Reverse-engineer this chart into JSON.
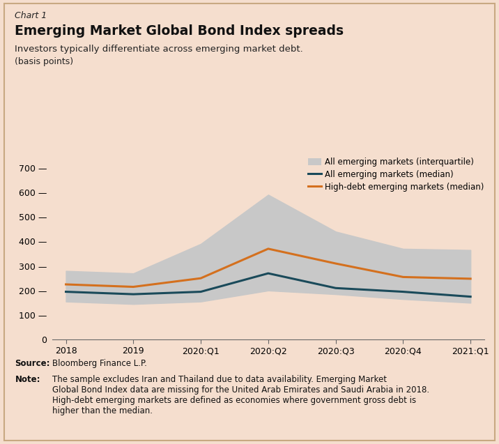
{
  "background_color": "#f5dece",
  "chart_label": "Chart 1",
  "title": "Emerging Market Global Bond Index spreads",
  "subtitle": "Investors typically differentiate across emerging market debt.",
  "ylabel": "(basis points)",
  "x_labels": [
    "2018",
    "2019",
    "2020:Q1",
    "2020:Q2",
    "2020:Q3",
    "2020:Q4",
    "2021:Q1"
  ],
  "x_positions": [
    0,
    1,
    2,
    3,
    4,
    5,
    6
  ],
  "ylim": [
    0,
    750
  ],
  "yticks": [
    0,
    100,
    200,
    300,
    400,
    500,
    600,
    700
  ],
  "median_all": [
    195,
    185,
    195,
    270,
    210,
    195,
    175
  ],
  "median_high": [
    225,
    215,
    250,
    370,
    310,
    255,
    248
  ],
  "iqr_lower": [
    155,
    145,
    155,
    200,
    185,
    165,
    150
  ],
  "iqr_upper": [
    280,
    270,
    390,
    590,
    440,
    370,
    365
  ],
  "fill_color": "#c8c8c8",
  "median_all_color": "#1a4a5a",
  "median_high_color": "#d4701e",
  "legend_fill_label": "All emerging markets (interquartile)",
  "legend_median_all_label": "All emerging markets (median)",
  "legend_median_high_label": "High-debt emerging markets (median)",
  "source_bold": "Source:",
  "source_rest": " Bloomberg Finance L.P.",
  "note_bold": "Note:",
  "note_rest": " The sample excludes Iran and Thailand due to data availability. Emerging Market\nGlobal Bond Index data are missing for the United Arab Emirates and Saudi Arabia in 2018.\nHigh-debt emerging markets are defined as economies where government gross debt is\nhigher than the median.",
  "line_width": 2.2,
  "border_color": "#c8a882"
}
